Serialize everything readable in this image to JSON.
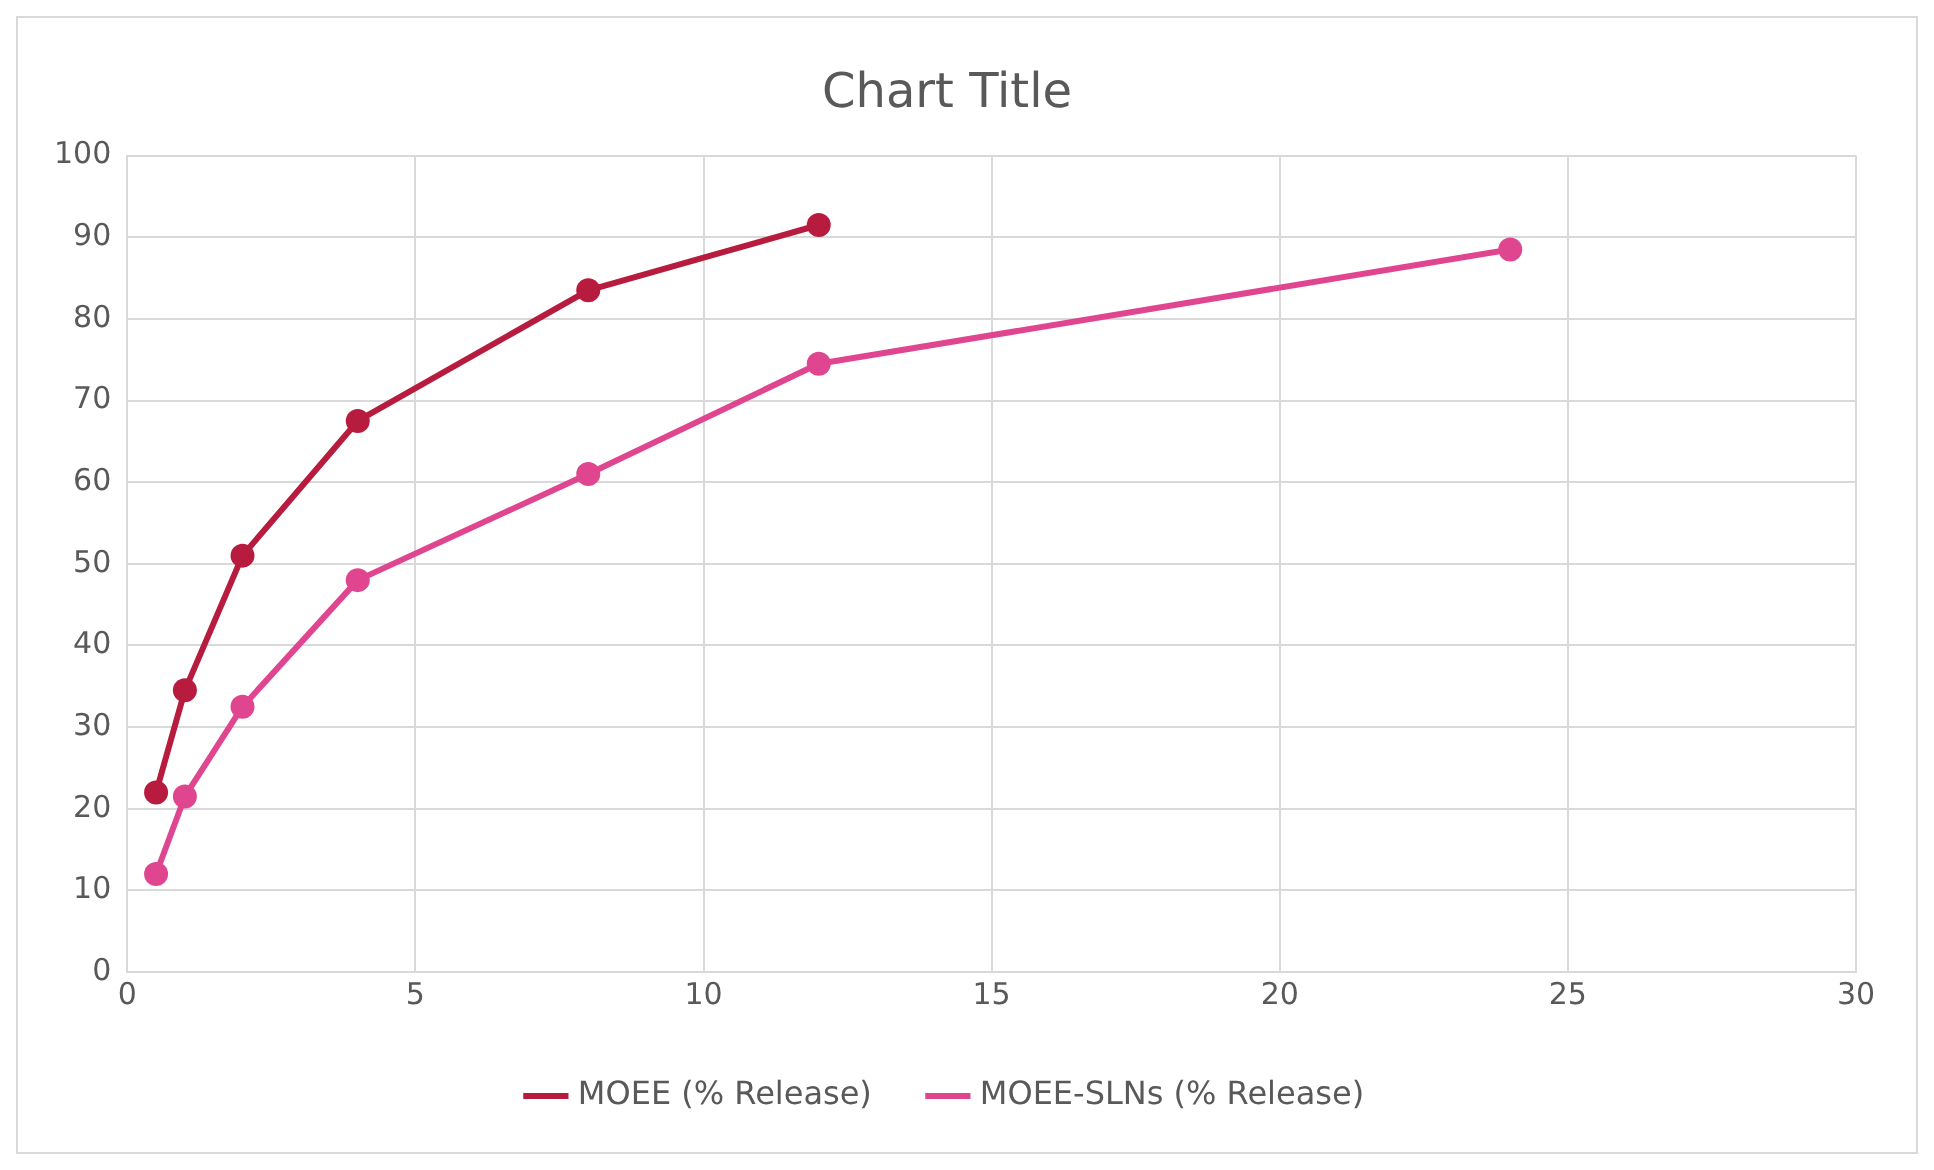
{
  "chart_data": {
    "type": "line",
    "title": "Chart Title",
    "series": [
      {
        "name": "MOEE (% Release)",
        "color": "#b71c3f",
        "x": [
          0.5,
          1,
          2,
          4,
          8,
          12
        ],
        "values": [
          22,
          34.5,
          51,
          67.5,
          83.5,
          91.5
        ]
      },
      {
        "name": "MOEE-SLNs (% Release)",
        "color": "#e0468f",
        "x": [
          0.5,
          1,
          2,
          4,
          8,
          12,
          24
        ],
        "values": [
          12,
          21.5,
          32.5,
          48,
          61,
          74.5,
          88.5
        ]
      }
    ],
    "xlim": [
      0,
      30
    ],
    "xticks": [
      0,
      5,
      10,
      15,
      20,
      25,
      30
    ],
    "ylim": [
      0,
      100
    ],
    "yticks": [
      0,
      10,
      20,
      30,
      40,
      50,
      60,
      70,
      80,
      90,
      100
    ],
    "grid": true,
    "legend": "bottom",
    "marker": "circle",
    "line_style": "solid"
  }
}
